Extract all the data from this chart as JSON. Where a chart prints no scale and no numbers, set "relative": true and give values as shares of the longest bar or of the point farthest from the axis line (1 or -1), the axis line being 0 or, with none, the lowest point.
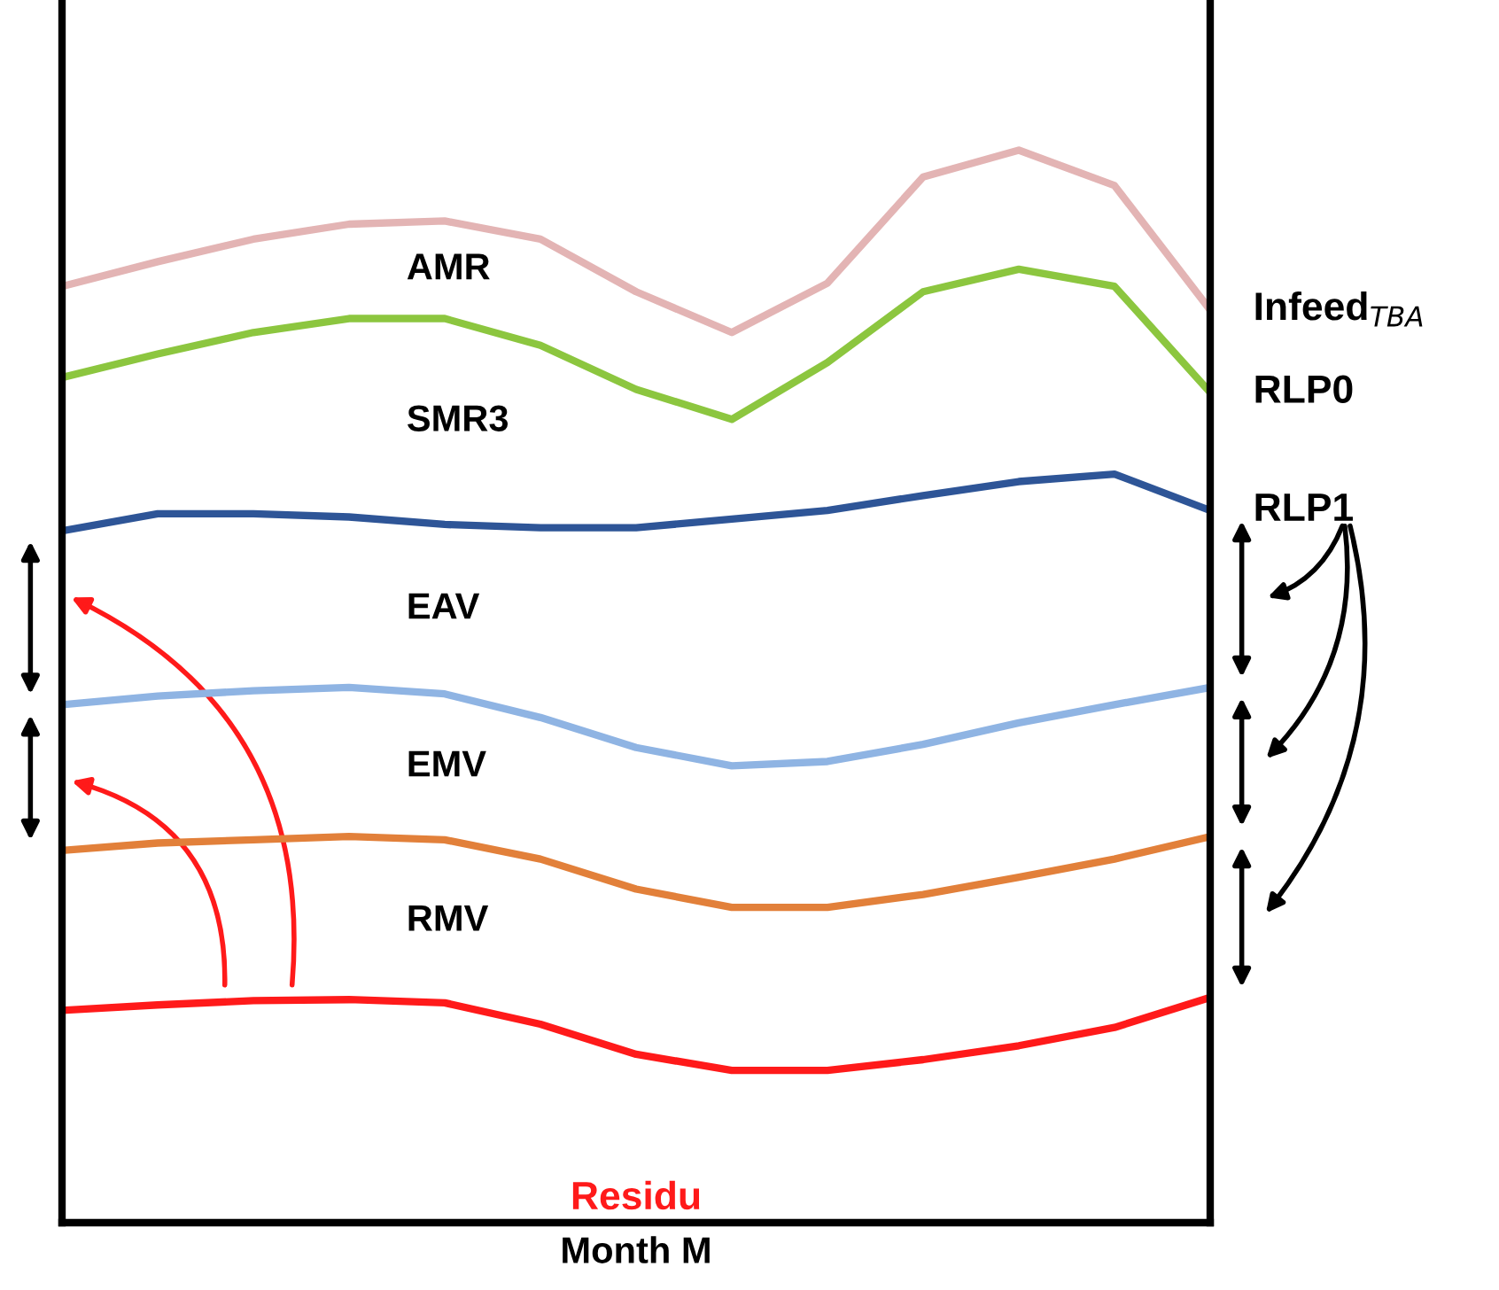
{
  "chart_data": {
    "type": "line",
    "relative": true,
    "xlabel": "Month M",
    "categories": [
      null,
      null,
      null,
      null,
      null,
      null,
      null,
      null,
      null,
      null,
      null,
      null,
      null
    ],
    "series": [
      {
        "name": "Infeed$_{TBA}$",
        "color": "#e3b4b4",
        "values": [
          0.873,
          0.896,
          0.917,
          0.931,
          0.934,
          0.917,
          0.868,
          0.83,
          0.876,
          0.975,
          1.0,
          0.967,
          0.851
        ]
      },
      {
        "name": "RLP0",
        "color": "#8cc63f",
        "values": [
          0.788,
          0.81,
          0.83,
          0.843,
          0.843,
          0.818,
          0.777,
          0.749,
          0.802,
          0.868,
          0.889,
          0.873,
          0.774
        ]
      },
      {
        "name": "RLP1",
        "color": "#2e5597",
        "values": [
          0.645,
          0.661,
          0.661,
          0.658,
          0.651,
          0.648,
          0.648,
          0.656,
          0.664,
          0.678,
          0.691,
          0.698,
          0.664
        ]
      },
      {
        "color": "#8fb4e3",
        "values": [
          0.483,
          0.491,
          0.496,
          0.499,
          0.493,
          0.471,
          0.443,
          0.426,
          0.43,
          0.446,
          0.466,
          0.483,
          0.499
        ]
      },
      {
        "color": "#e2803a",
        "values": [
          0.347,
          0.354,
          0.357,
          0.36,
          0.357,
          0.339,
          0.311,
          0.294,
          0.294,
          0.306,
          0.322,
          0.339,
          0.36
        ]
      },
      {
        "name": "Residu",
        "color": "#ff1a1a",
        "values": [
          0.198,
          0.203,
          0.207,
          0.208,
          0.205,
          0.185,
          0.157,
          0.142,
          0.142,
          0.152,
          0.165,
          0.182,
          0.21
        ]
      }
    ],
    "annotations": [
      "AMR",
      "SMR3",
      "EAV",
      "EMV",
      "RMV"
    ],
    "grid": false,
    "legend": false,
    "marker": "none",
    "line_style": "solid"
  }
}
